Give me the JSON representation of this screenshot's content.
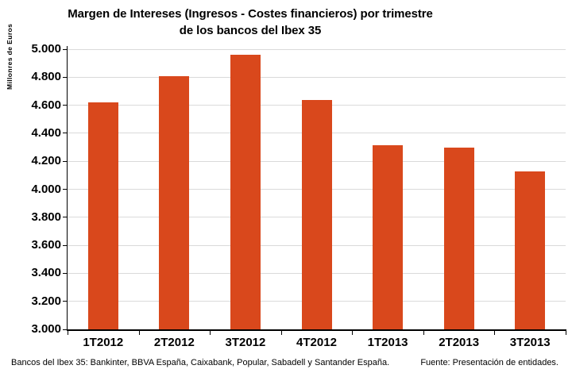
{
  "title": {
    "line1": "Margen de Intereses (Ingresos - Costes financieros) por trimestre",
    "line2": "de los bancos del Ibex 35"
  },
  "y_axis": {
    "label": "Millonres de Euros",
    "tick_labels": [
      "5.000",
      "4.800",
      "4.600",
      "4.400",
      "4.200",
      "4.000",
      "3.800",
      "3.600",
      "3.400",
      "3.200",
      "3.000"
    ]
  },
  "footer": {
    "left": "Bancos del Ibex 35: Bankinter, BBVA España, Caixabank, Popular, Sabadell y Santander España.",
    "right": "Fuente: Presentación de entidades."
  },
  "chart_data": {
    "type": "bar",
    "title": "Margen de Intereses (Ingresos - Costes financieros) por trimestre de los bancos del Ibex 35",
    "categories": [
      "1T2012",
      "2T2012",
      "3T2012",
      "4T2012",
      "1T2013",
      "2T2013",
      "3T2013"
    ],
    "values": [
      4620,
      4805,
      4960,
      4635,
      4315,
      4300,
      4125
    ],
    "xlabel": "",
    "ylabel": "Millonres de Euros",
    "ylim": [
      3000,
      5000
    ],
    "ytick_step": 200,
    "grid": true,
    "legend": false,
    "bar_color": "#D9481C",
    "gridline_color": "#DADADA"
  }
}
